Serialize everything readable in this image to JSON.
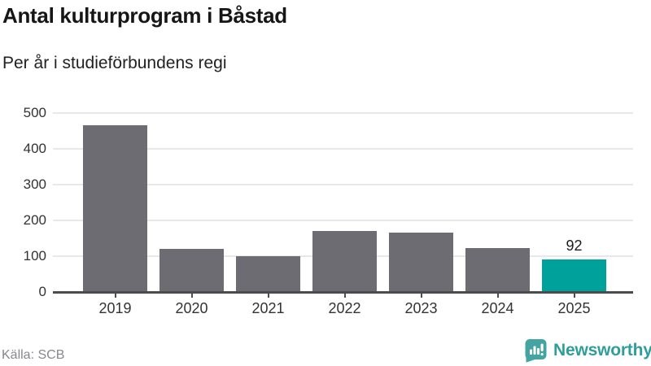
{
  "header": {
    "title": "Antal kulturprogram i Båstad",
    "subtitle": "Per år i studieförbundens regi"
  },
  "chart_data": {
    "type": "bar",
    "title": "Antal kulturprogram i Båstad",
    "subtitle": "Per år i studieförbundens regi",
    "categories": [
      "2019",
      "2020",
      "2021",
      "2022",
      "2023",
      "2024",
      "2025"
    ],
    "values": [
      467,
      120,
      100,
      170,
      166,
      123,
      92
    ],
    "value_labels": [
      "",
      "",
      "",
      "",
      "",
      "",
      "92"
    ],
    "highlight_index": 6,
    "xlabel": "",
    "ylabel": "",
    "ylim": [
      0,
      500
    ],
    "yticks": [
      0,
      100,
      200,
      300,
      400,
      500
    ],
    "grid": true,
    "legend": "none",
    "bar_color": "#6c6c72",
    "highlight_color": "#00a19a"
  },
  "footer": {
    "source": "Källa: SCB",
    "brand": "Newsworthy",
    "brand_color": "#2f9e9a",
    "brand_icon": "bar-chart-speech-bubble",
    "brand_icon_color": "#43a4a1"
  }
}
